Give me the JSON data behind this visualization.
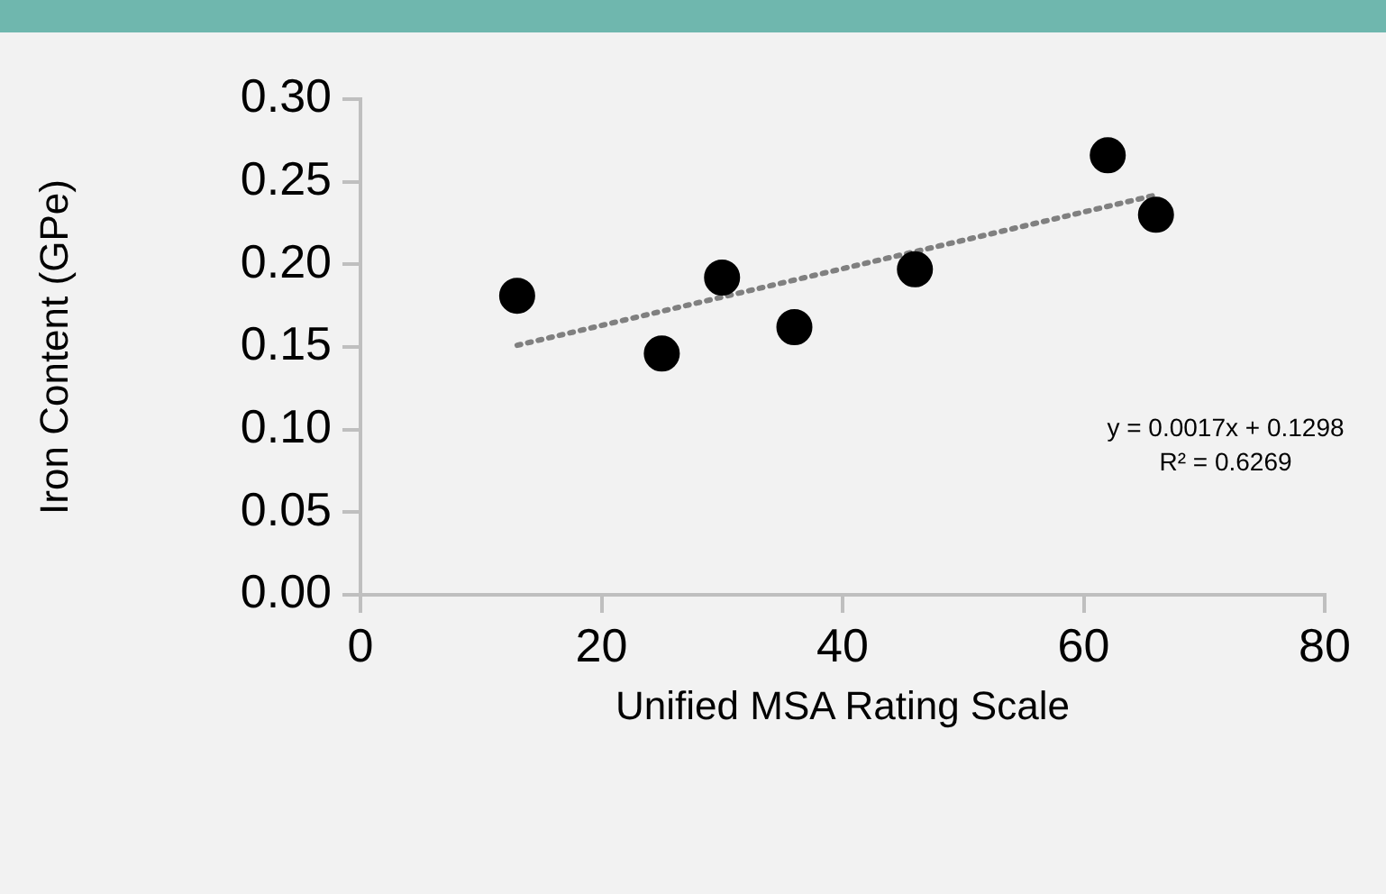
{
  "chart_data": {
    "type": "scatter",
    "xlabel": "Unified MSA Rating Scale",
    "ylabel": "Iron Content (GPe)",
    "series": [
      {
        "type": "scatter",
        "color": "#000000",
        "marker": "circle",
        "x": [
          13,
          25,
          30,
          36,
          46,
          62,
          66
        ],
        "values": [
          0.181,
          0.146,
          0.192,
          0.162,
          0.197,
          0.266,
          0.23
        ]
      },
      {
        "type": "line",
        "color": "#808080",
        "line_style": "dotted",
        "marker": "none",
        "x": [
          13,
          66
        ],
        "values": [
          0.151,
          0.242
        ]
      }
    ],
    "xlim": [
      0,
      80
    ],
    "xticks": [
      0,
      20,
      40,
      60,
      80
    ],
    "ylim": [
      0,
      0.3
    ],
    "yticks": [
      {
        "value": 0,
        "label": "0.00"
      },
      {
        "value": 0.05,
        "label": "0.05"
      },
      {
        "value": 0.1,
        "label": "0.10"
      },
      {
        "value": 0.15,
        "label": "0.15"
      },
      {
        "value": 0.2,
        "label": "0.20"
      },
      {
        "value": 0.25,
        "label": "0.25"
      },
      {
        "value": 0.3,
        "label": "0.30"
      }
    ],
    "annotations": [
      "y = 0.0017x + 0.1298",
      "R² = 0.6269"
    ]
  }
}
